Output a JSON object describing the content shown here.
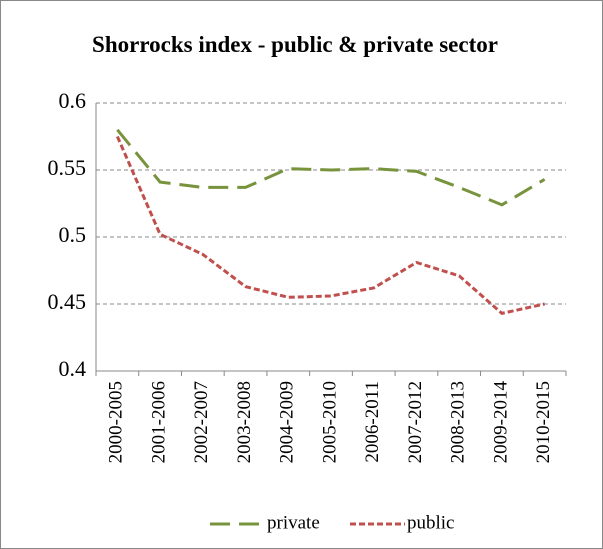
{
  "chart_data": {
    "type": "line",
    "title": "Shorrocks index - public & private sector",
    "categories": [
      "2000-2005",
      "2001-2006",
      "2002-2007",
      "2003-2008",
      "2004-2009",
      "2005-2010",
      "2006-2011",
      "2007-2012",
      "2008-2013",
      "2009-2014",
      "2010-2015"
    ],
    "series": [
      {
        "name": "private",
        "color": "#77933c",
        "dash": "long",
        "values": [
          0.58,
          0.541,
          0.537,
          0.537,
          0.551,
          0.55,
          0.551,
          0.549,
          0.537,
          0.524,
          0.543
        ]
      },
      {
        "name": "public",
        "color": "#c0504d",
        "dash": "short",
        "values": [
          0.575,
          0.502,
          0.487,
          0.463,
          0.455,
          0.456,
          0.462,
          0.481,
          0.471,
          0.443,
          0.45
        ]
      }
    ],
    "ylim": [
      0.4,
      0.6
    ],
    "yticks": [
      0.4,
      0.45,
      0.5,
      0.55,
      0.6
    ],
    "grid": true,
    "legend": "bottom"
  }
}
